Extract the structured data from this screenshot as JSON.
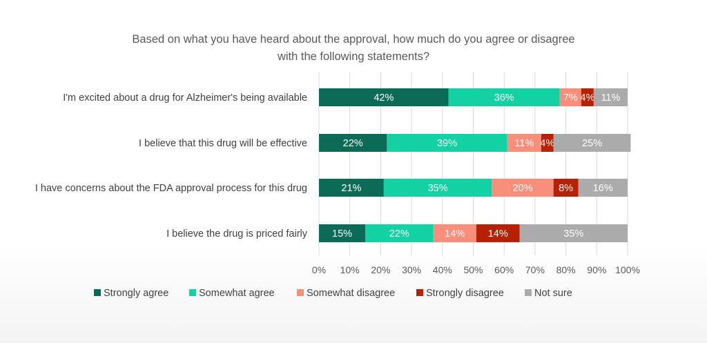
{
  "chart_data": {
    "type": "bar",
    "orientation": "horizontal",
    "stacked": true,
    "title_lines": [
      "Based on what you have heard about the approval, how much do you agree or disagree",
      "with the following statements?"
    ],
    "categories": [
      "I'm excited about a drug for Alzheimer's being available",
      "I believe that this drug will be effective",
      "I have concerns about the FDA approval process for this drug",
      "I believe the drug is priced fairly"
    ],
    "series": [
      {
        "name": "Strongly agree",
        "color": "#0B6B57",
        "values": [
          42,
          22,
          21,
          15
        ]
      },
      {
        "name": "Somewhat agree",
        "color": "#14D1A3",
        "values": [
          36,
          39,
          35,
          22
        ]
      },
      {
        "name": "Somewhat disagree",
        "color": "#F98E7A",
        "values": [
          7,
          11,
          20,
          14
        ]
      },
      {
        "name": "Strongly disagree",
        "color": "#B42103",
        "values": [
          4,
          4,
          8,
          14
        ]
      },
      {
        "name": "Not sure",
        "color": "#ABABAB",
        "values": [
          11,
          25,
          16,
          35
        ]
      }
    ],
    "x_ticks": [
      "0%",
      "10%",
      "20%",
      "30%",
      "40%",
      "50%",
      "60%",
      "70%",
      "80%",
      "90%",
      "100%"
    ],
    "xlim": [
      0,
      100
    ],
    "grid": true,
    "legend_position": "bottom",
    "value_suffix": "%"
  }
}
